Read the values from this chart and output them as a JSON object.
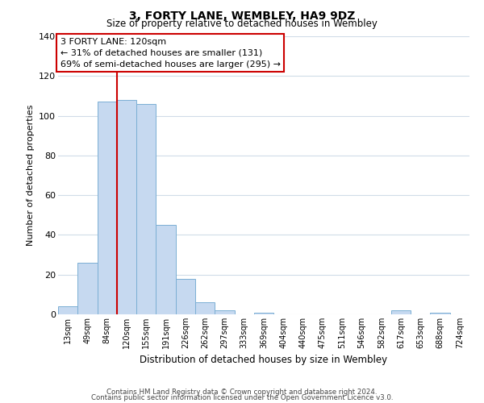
{
  "title": "3, FORTY LANE, WEMBLEY, HA9 9DZ",
  "subtitle": "Size of property relative to detached houses in Wembley",
  "xlabel": "Distribution of detached houses by size in Wembley",
  "ylabel": "Number of detached properties",
  "bar_labels": [
    "13sqm",
    "49sqm",
    "84sqm",
    "120sqm",
    "155sqm",
    "191sqm",
    "226sqm",
    "262sqm",
    "297sqm",
    "333sqm",
    "369sqm",
    "404sqm",
    "440sqm",
    "475sqm",
    "511sqm",
    "546sqm",
    "582sqm",
    "617sqm",
    "653sqm",
    "688sqm",
    "724sqm"
  ],
  "bar_values": [
    4,
    26,
    107,
    108,
    106,
    45,
    18,
    6,
    2,
    0,
    1,
    0,
    0,
    0,
    0,
    0,
    0,
    2,
    0,
    1,
    0
  ],
  "bar_color": "#c6d9f0",
  "bar_edge_color": "#7bafd4",
  "vline_bin_index": 3,
  "vline_color": "#cc0000",
  "ylim": [
    0,
    140
  ],
  "yticks": [
    0,
    20,
    40,
    60,
    80,
    100,
    120,
    140
  ],
  "annotation_title": "3 FORTY LANE: 120sqm",
  "annotation_line1": "← 31% of detached houses are smaller (131)",
  "annotation_line2": "69% of semi-detached houses are larger (295) →",
  "annotation_box_color": "#ffffff",
  "annotation_box_edge": "#cc0000",
  "footer_line1": "Contains HM Land Registry data © Crown copyright and database right 2024.",
  "footer_line2": "Contains public sector information licensed under the Open Government Licence v3.0.",
  "background_color": "#ffffff",
  "grid_color": "#d0dce8"
}
